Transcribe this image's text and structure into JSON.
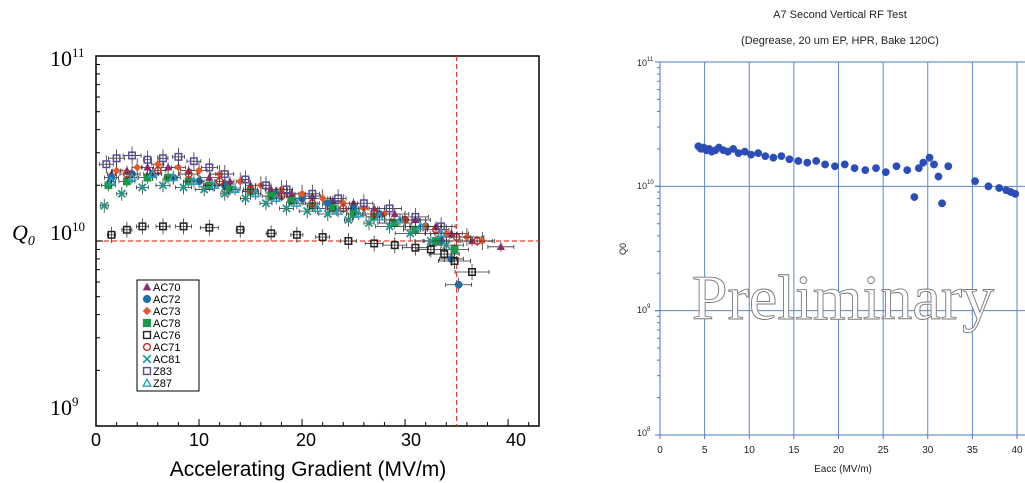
{
  "chart_data": [
    {
      "type": "scatter",
      "title": "",
      "xlabel": "Accelerating Gradient (MV/m)",
      "ylabel": "Q0",
      "ylabel_main": "Q",
      "ylabel_sub": "0",
      "yscale": "log",
      "xlim": [
        0,
        43
      ],
      "ylim": [
        1000000000.0,
        100000000000.0
      ],
      "x_ticks": [
        "0",
        "10",
        "20",
        "30",
        "40"
      ],
      "y_tick_base": "10",
      "y_tick_exps": [
        "11",
        "10",
        "9"
      ],
      "legend_position": "bottom-left",
      "reference_lines": {
        "x": 35,
        "y": 10000000000.0,
        "color": "#e8402a"
      },
      "series": [
        {
          "name": "AC70",
          "color": "#8e2d6a",
          "marker": "triangle",
          "x": [
            1.5,
            3,
            5,
            7,
            9,
            11,
            13,
            15,
            17,
            19,
            21,
            23,
            25,
            27,
            29,
            31,
            33,
            34.5,
            36.5,
            39.3
          ],
          "y": [
            23000000000.0,
            24000000000.0,
            25000000000.0,
            25000000000.0,
            24000000000.0,
            22000000000.0,
            21000000000.0,
            20000000000.0,
            19000000000.0,
            18000000000.0,
            17500000000.0,
            16500000000.0,
            16000000000.0,
            15000000000.0,
            14000000000.0,
            13000000000.0,
            12000000000.0,
            11000000000.0,
            10000000000.0,
            9300000000.0
          ]
        },
        {
          "name": "AC72",
          "color": "#1f6fa8",
          "marker": "circle",
          "x": [
            1.5,
            3.5,
            5.5,
            7.5,
            10,
            12.5,
            15,
            17.5,
            20,
            22.5,
            25,
            27.5,
            30,
            32,
            33.5,
            34.5,
            35.2
          ],
          "y": [
            22000000000.0,
            23000000000.0,
            23000000000.0,
            22000000000.0,
            21000000000.0,
            20000000000.0,
            19000000000.0,
            18000000000.0,
            17000000000.0,
            16000000000.0,
            15000000000.0,
            14000000000.0,
            13000000000.0,
            12000000000.0,
            10000000000.0,
            8000000000.0,
            5800000000.0
          ]
        },
        {
          "name": "AC73",
          "color": "#e8572a",
          "marker": "diamond",
          "x": [
            2,
            4,
            6,
            8,
            10,
            12,
            14,
            16,
            18,
            20,
            22,
            24,
            26,
            28,
            30,
            32,
            34,
            36,
            37.5
          ],
          "y": [
            24000000000.0,
            25000000000.0,
            26000000000.0,
            25000000000.0,
            24000000000.0,
            23000000000.0,
            21000000000.0,
            20000000000.0,
            19000000000.0,
            18000000000.0,
            17000000000.0,
            16000000000.0,
            15000000000.0,
            14000000000.0,
            13000000000.0,
            12000000000.0,
            11000000000.0,
            10500000000.0,
            10000000000.0
          ]
        },
        {
          "name": "AC78",
          "color": "#1a9a48",
          "marker": "square",
          "x": [
            1.2,
            3,
            5,
            7,
            9,
            11,
            13,
            15,
            17,
            19,
            21,
            23,
            25,
            27,
            29,
            31,
            33,
            34.8
          ],
          "y": [
            20000000000.0,
            21000000000.0,
            22000000000.0,
            22000000000.0,
            21000000000.0,
            20000000000.0,
            19000000000.0,
            18500000000.0,
            17500000000.0,
            16500000000.0,
            15500000000.0,
            15000000000.0,
            14000000000.0,
            13500000000.0,
            12500000000.0,
            11500000000.0,
            10000000000.0,
            9000000000.0
          ]
        },
        {
          "name": "AC76",
          "color": "#222222",
          "marker": "square-open",
          "x": [
            1.5,
            3,
            4.5,
            6.5,
            8.5,
            11,
            14,
            17,
            19.5,
            22,
            24.5,
            27,
            29,
            31,
            32.5,
            33.8,
            34.8,
            36.5
          ],
          "y": [
            10800000000.0,
            11500000000.0,
            12000000000.0,
            12000000000.0,
            12000000000.0,
            11800000000.0,
            11500000000.0,
            11000000000.0,
            10800000000.0,
            10500000000.0,
            10000000000.0,
            9700000000.0,
            9500000000.0,
            9200000000.0,
            9000000000.0,
            8500000000.0,
            7800000000.0,
            6800000000.0
          ]
        },
        {
          "name": "AC71",
          "color": "#cc2a2a",
          "marker": "circle-open",
          "x": [
            3,
            6,
            9,
            12,
            15,
            18,
            21,
            24,
            27,
            30,
            33,
            35,
            37
          ],
          "y": [
            23000000000.0,
            24000000000.0,
            23000000000.0,
            21000000000.0,
            19000000000.0,
            17500000000.0,
            16000000000.0,
            15000000000.0,
            14000000000.0,
            13000000000.0,
            11500000000.0,
            10500000000.0,
            10000000000.0
          ]
        },
        {
          "name": "AC81",
          "color": "#1a9a8a",
          "marker": "x",
          "x": [
            0.8,
            2.5,
            4.5,
            6.5,
            8.5,
            10.5,
            12.5,
            14.5,
            16.5,
            18.5,
            20.5,
            22.5,
            24.5,
            26.5,
            28.5,
            30.5,
            32.5,
            34
          ],
          "y": [
            15500000000.0,
            18000000000.0,
            19500000000.0,
            20000000000.0,
            19500000000.0,
            19000000000.0,
            18000000000.0,
            17000000000.0,
            16000000000.0,
            15000000000.0,
            14500000000.0,
            14000000000.0,
            13000000000.0,
            12500000000.0,
            12000000000.0,
            11000000000.0,
            10000000000.0,
            9500000000.0
          ]
        },
        {
          "name": "Z83",
          "color": "#5a4aa0",
          "marker": "square-open",
          "x": [
            1,
            2,
            3.5,
            5,
            6.5,
            8,
            9.5,
            11,
            12.5,
            14.5,
            16.5,
            18.5,
            21,
            23.5,
            26,
            28.5,
            31,
            33.5
          ],
          "y": [
            26000000000.0,
            28000000000.0,
            29000000000.0,
            27500000000.0,
            28000000000.0,
            28500000000.0,
            27000000000.0,
            25000000000.0,
            23000000000.0,
            21500000000.0,
            20000000000.0,
            19000000000.0,
            18000000000.0,
            17000000000.0,
            16000000000.0,
            15000000000.0,
            13500000000.0,
            12000000000.0
          ]
        },
        {
          "name": "Z87",
          "color": "#2aa0c8",
          "marker": "triangle-open",
          "x": [
            1.5,
            3.5,
            5.5,
            7.5,
            9.5,
            11.5,
            13.5,
            15.5,
            17.5,
            19.5,
            21.5,
            23.5,
            25.5,
            27.5,
            29.5,
            31.5,
            33.5
          ],
          "y": [
            21000000000.0,
            22000000000.0,
            23000000000.0,
            22000000000.0,
            21000000000.0,
            20000000000.0,
            19000000000.0,
            18000000000.0,
            17000000000.0,
            16000000000.0,
            15000000000.0,
            14500000000.0,
            14000000000.0,
            13500000000.0,
            13000000000.0,
            12000000000.0,
            11000000000.0
          ]
        }
      ]
    },
    {
      "type": "scatter",
      "title": "A7 Second Vertical RF Test",
      "subtitle": "(Degrease, 20 um EP, HPR, Bake 120C)",
      "xlabel": "Eacc (MV/m)",
      "ylabel": "Q0",
      "yscale": "log",
      "xlim": [
        0,
        40
      ],
      "ylim": [
        100000000.0,
        100000000000.0
      ],
      "x_ticks": [
        "0",
        "5",
        "10",
        "15",
        "20",
        "25",
        "30",
        "35",
        "40"
      ],
      "y_tick_base": "10",
      "y_tick_exps": [
        "11",
        "10",
        "9",
        "8"
      ],
      "grid": true,
      "annotation": "Preliminary",
      "series": [
        {
          "name": "",
          "color": "#2a4db8",
          "marker": "circle",
          "x": [
            4.3,
            4.6,
            4.9,
            5.2,
            5.5,
            5.8,
            6.2,
            6.6,
            7.1,
            7.6,
            8.2,
            8.8,
            9.5,
            10.2,
            11,
            11.8,
            12.7,
            13.6,
            14.5,
            15.5,
            16.5,
            17.5,
            18.5,
            19.6,
            20.7,
            21.8,
            23,
            24.2,
            25.3,
            26.5,
            27.7,
            28.5,
            29,
            29.5,
            30.2,
            30.7,
            31.2,
            31.6,
            32.3,
            35.3,
            36.8,
            38,
            38.8,
            39.3,
            39.8
          ],
          "y": [
            21000000000.0,
            20000000000.0,
            20500000000.0,
            19500000000.0,
            20000000000.0,
            19000000000.0,
            19500000000.0,
            20500000000.0,
            19500000000.0,
            19000000000.0,
            20000000000.0,
            18500000000.0,
            19000000000.0,
            18000000000.0,
            18500000000.0,
            17500000000.0,
            17000000000.0,
            17500000000.0,
            16500000000.0,
            16000000000.0,
            15500000000.0,
            16000000000.0,
            15000000000.0,
            14500000000.0,
            15000000000.0,
            14000000000.0,
            13500000000.0,
            14000000000.0,
            13000000000.0,
            14500000000.0,
            13500000000.0,
            8200000000.0,
            14000000000.0,
            15500000000.0,
            17000000000.0,
            15000000000.0,
            12000000000.0,
            7300000000.0,
            14500000000.0,
            11000000000.0,
            10000000000.0,
            9700000000.0,
            9300000000.0,
            9000000000.0,
            8700000000.0
          ]
        }
      ]
    }
  ]
}
